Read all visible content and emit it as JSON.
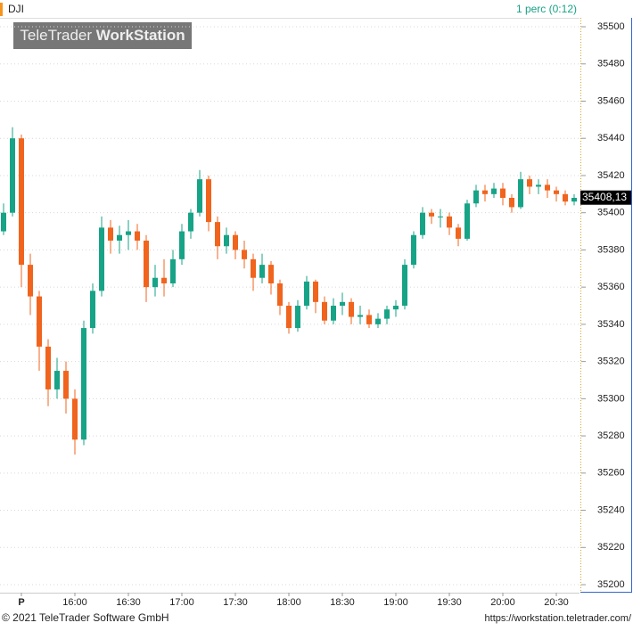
{
  "header": {
    "symbol": "DJI",
    "interval": "1 perc (0:12)"
  },
  "watermark": {
    "brand": "TeleTrader",
    "product": "WorkStation"
  },
  "footer": {
    "copyright": "© 2021  TeleTrader Software GmbH",
    "url": "https://workstation.teletrader.com/"
  },
  "chart_data": {
    "type": "candlestick",
    "up_color": "#17a386",
    "down_color": "#f0641e",
    "grid": true,
    "xlim": [
      918,
      1243
    ],
    "xticks": [
      {
        "value": 930,
        "label": "P"
      },
      {
        "value": 960,
        "label": "16:00"
      },
      {
        "value": 990,
        "label": "16:30"
      },
      {
        "value": 1020,
        "label": "17:00"
      },
      {
        "value": 1050,
        "label": "17:30"
      },
      {
        "value": 1080,
        "label": "18:00"
      },
      {
        "value": 1110,
        "label": "18:30"
      },
      {
        "value": 1140,
        "label": "19:00"
      },
      {
        "value": 1170,
        "label": "19:30"
      },
      {
        "value": 1200,
        "label": "20:00"
      },
      {
        "value": 1230,
        "label": "20:30"
      }
    ],
    "ylim": [
      35195.7,
      35504.8
    ],
    "yticks": [
      35200,
      35220,
      35240,
      35260,
      35280,
      35300,
      35320,
      35340,
      35360,
      35380,
      35400,
      35420,
      35440,
      35460,
      35480,
      35500
    ],
    "last_price": {
      "value": 35408.13,
      "label": "35408,13"
    },
    "x": [
      920,
      925,
      930,
      935,
      940,
      945,
      950,
      955,
      960,
      965,
      970,
      975,
      980,
      985,
      990,
      995,
      1000,
      1005,
      1010,
      1015,
      1020,
      1025,
      1030,
      1035,
      1040,
      1045,
      1050,
      1055,
      1060,
      1065,
      1070,
      1075,
      1080,
      1085,
      1090,
      1095,
      1100,
      1105,
      1110,
      1115,
      1120,
      1125,
      1130,
      1135,
      1140,
      1145,
      1150,
      1155,
      1160,
      1165,
      1170,
      1175,
      1180,
      1185,
      1190,
      1195,
      1200,
      1205,
      1210,
      1215,
      1220,
      1225,
      1230,
      1235,
      1240
    ],
    "open": [
      35390,
      35400,
      35440,
      35372,
      35355,
      35328,
      35305,
      35315,
      35300,
      35278,
      35338,
      35358,
      35392,
      35385,
      35388,
      35390,
      35385,
      35360,
      35365,
      35362,
      35375,
      35390,
      35400,
      35418,
      35395,
      35382,
      35388,
      35380,
      35375,
      35365,
      35372,
      35362,
      35350,
      35338,
      35350,
      35363,
      35352,
      35342,
      35350,
      35352,
      35344,
      35345,
      35340,
      35343,
      35348,
      35350,
      35372,
      35388,
      35400,
      35398,
      35398,
      35392,
      35386,
      35405,
      35412,
      35410,
      35413,
      35408,
      35403,
      35418,
      35414,
      35415,
      35412,
      35410,
      35406
    ],
    "high": [
      35405,
      35446,
      35442,
      35378,
      35358,
      35332,
      35322,
      35320,
      35305,
      35342,
      35362,
      35398,
      35396,
      35393,
      35396,
      35394,
      35388,
      35372,
      35375,
      35380,
      35394,
      35402,
      35423,
      35420,
      35398,
      35392,
      35390,
      35385,
      35378,
      35378,
      35374,
      35364,
      35352,
      35353,
      35366,
      35364,
      35355,
      35354,
      35357,
      35354,
      35350,
      35348,
      35346,
      35350,
      35353,
      35375,
      35390,
      35403,
      35402,
      35402,
      35400,
      35394,
      35407,
      35415,
      35415,
      35416,
      35416,
      35410,
      35422,
      35420,
      35418,
      35418,
      35414,
      35412,
      35410
    ],
    "low": [
      35388,
      35398,
      35360,
      35345,
      35315,
      35296,
      35300,
      35292,
      35270,
      35275,
      35335,
      35355,
      35378,
      35378,
      35380,
      35380,
      35352,
      35355,
      35355,
      35360,
      35372,
      35386,
      35398,
      35390,
      35375,
      35378,
      35375,
      35370,
      35358,
      35362,
      35356,
      35345,
      35335,
      35336,
      35348,
      35346,
      35340,
      35340,
      35345,
      35340,
      35340,
      35338,
      35338,
      35340,
      35344,
      35348,
      35370,
      35386,
      35394,
      35392,
      35388,
      35382,
      35385,
      35403,
      35406,
      35408,
      35404,
      35400,
      35402,
      35410,
      35410,
      35408,
      35406,
      35404,
      35404
    ],
    "close": [
      35400,
      35440,
      35372,
      35355,
      35328,
      35305,
      35315,
      35300,
      35278,
      35338,
      35358,
      35392,
      35385,
      35388,
      35390,
      35385,
      35360,
      35365,
      35362,
      35375,
      35390,
      35400,
      35418,
      35395,
      35382,
      35388,
      35380,
      35375,
      35365,
      35372,
      35362,
      35350,
      35338,
      35350,
      35363,
      35352,
      35342,
      35350,
      35352,
      35344,
      35345,
      35340,
      35343,
      35348,
      35350,
      35372,
      35388,
      35400,
      35398,
      35398,
      35392,
      35386,
      35405,
      35412,
      35410,
      35413,
      35408,
      35403,
      35418,
      35414,
      35415,
      35412,
      35410,
      35406,
      35408
    ]
  }
}
